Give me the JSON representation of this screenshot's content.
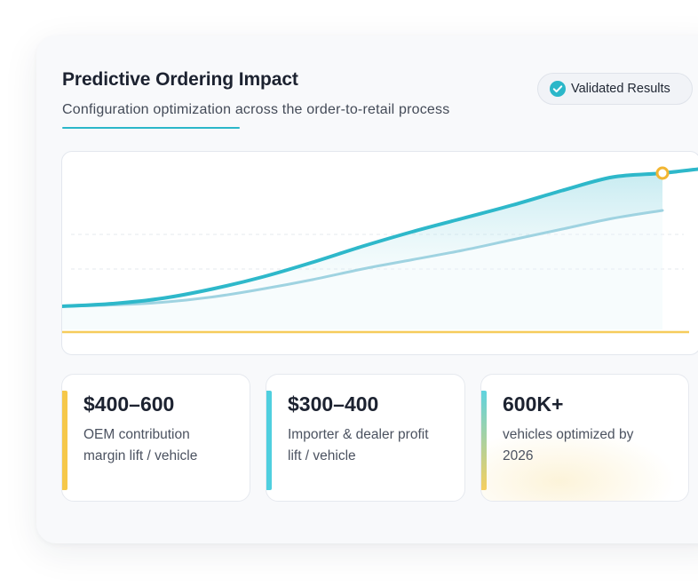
{
  "header": {
    "title": "Predictive Ordering Impact",
    "subtitle": "Configuration optimization across the order-to-retail process"
  },
  "badge": {
    "label": "Validated Results",
    "icon": "check-circle-icon",
    "color": "#2bb7c9"
  },
  "chart_data": {
    "type": "area",
    "grid": "dashed horizontal",
    "series": [
      {
        "color": "#2eb8ca",
        "values": [
          0.0,
          0.02,
          0.06,
          0.13,
          0.22,
          0.33,
          0.45,
          0.56,
          0.66,
          0.76,
          0.87,
          0.97,
          1.0
        ]
      },
      {
        "color": "#9fd3e1",
        "values": [
          0.0,
          0.01,
          0.03,
          0.07,
          0.13,
          0.2,
          0.28,
          0.35,
          0.42,
          0.5,
          0.58,
          0.66,
          0.72
        ]
      },
      {
        "color": "#f6cc5b",
        "values": [
          0.0,
          0.0,
          0.0,
          0.0,
          0.0,
          0.0,
          0.0,
          0.0,
          0.0,
          0.0,
          0.0,
          0.0,
          0.0
        ]
      }
    ],
    "highlight_point_color": "#f2b632"
  },
  "stats": [
    {
      "value": "$400–600",
      "description": "OEM contribution margin lift / vehicle",
      "accent": "#f6c84a"
    },
    {
      "value": "$300–400",
      "description": "Importer & dealer profit lift / vehicle",
      "accent": "#4fcfdf"
    },
    {
      "value": "600K+",
      "description": "vehicles optimized by 2026",
      "accent": "#7fd6d8"
    }
  ]
}
